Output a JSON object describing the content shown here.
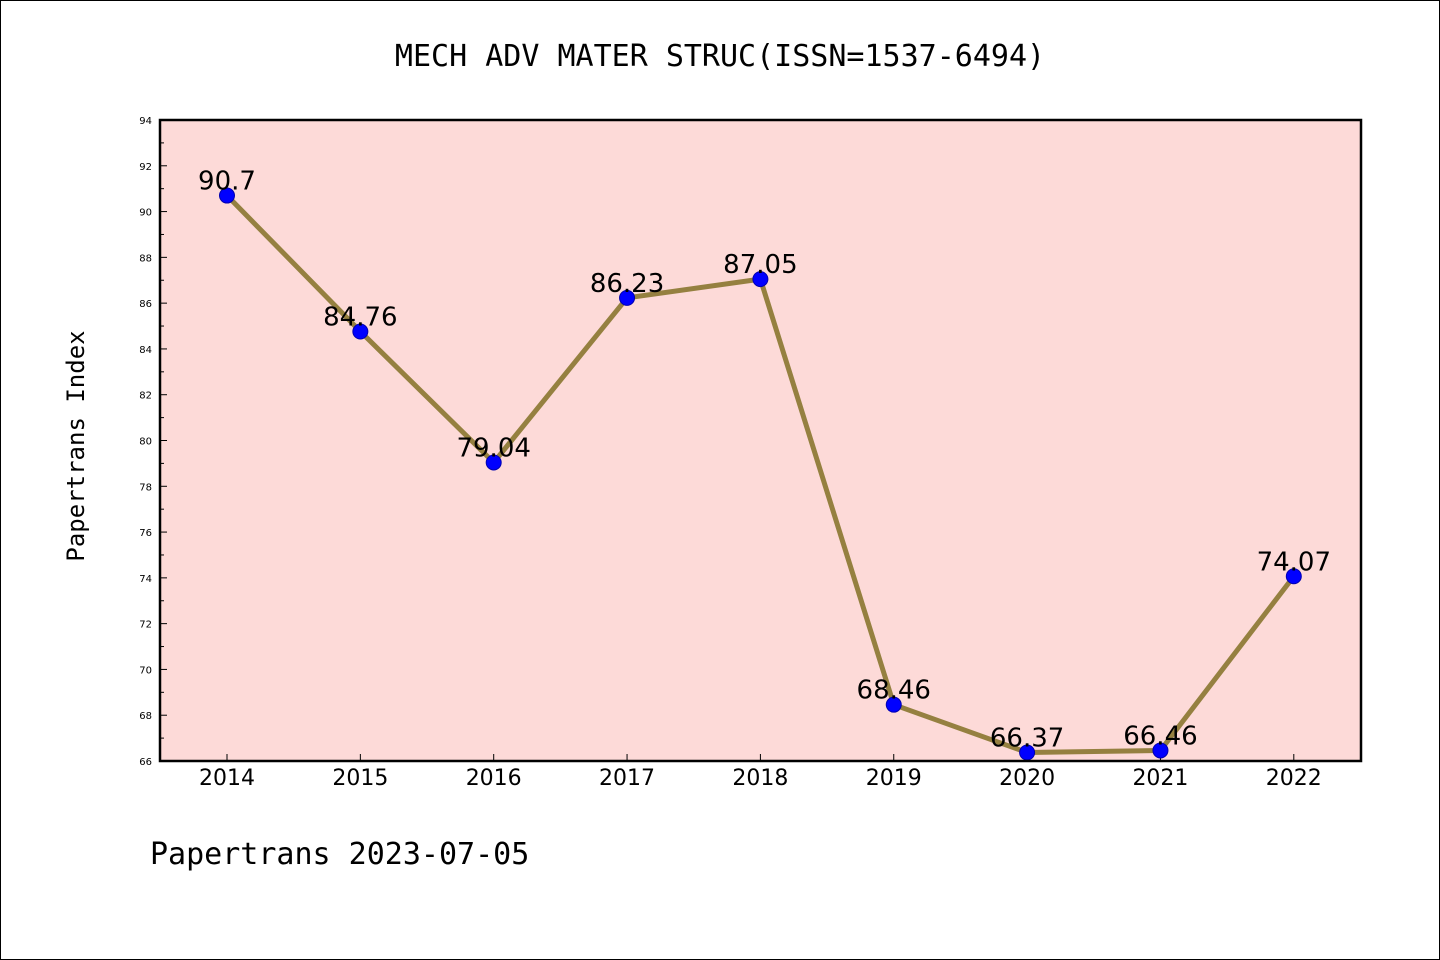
{
  "chart_data": {
    "type": "line",
    "title": "MECH ADV MATER STRUC(ISSN=1537-6494)",
    "xlabel": "",
    "ylabel": "Papertrans Index",
    "categories": [
      "2014",
      "2015",
      "2016",
      "2017",
      "2018",
      "2019",
      "2020",
      "2021",
      "2022"
    ],
    "values": [
      90.7,
      84.76,
      79.04,
      86.23,
      87.05,
      68.46,
      66.37,
      66.46,
      74.07
    ],
    "data_labels": [
      "90.7",
      "84.76",
      "79.04",
      "86.23",
      "87.05",
      "68.46",
      "66.37",
      "66.46",
      "74.07"
    ],
    "ylim": [
      66,
      94
    ],
    "yticks": [
      "66",
      "68",
      "70",
      "72",
      "74",
      "76",
      "78",
      "80",
      "82",
      "84",
      "86",
      "88",
      "90",
      "92",
      "94"
    ],
    "grid": false,
    "colors": {
      "plot_background": "#fddad8",
      "line": "#958040",
      "marker": "#0000ff"
    }
  },
  "footer": "Papertrans 2023-07-05"
}
